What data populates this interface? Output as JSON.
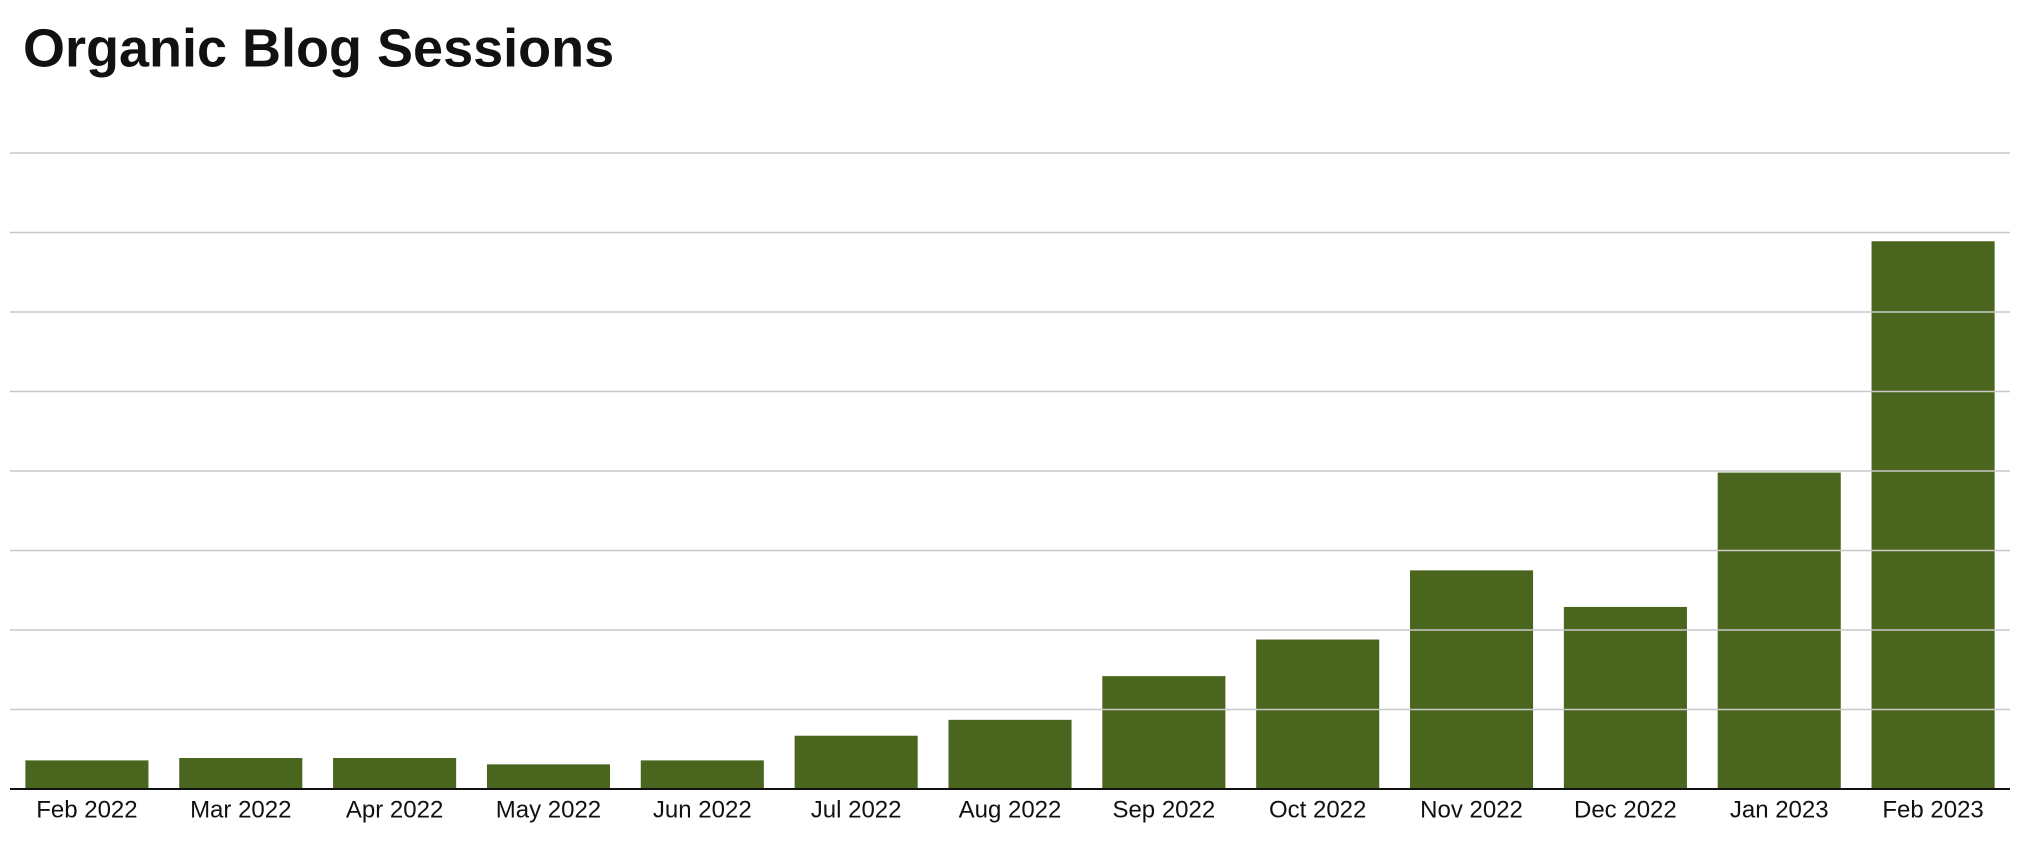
{
  "chart_data": {
    "type": "bar",
    "title": "Organic Blog Sessions",
    "categories": [
      "Feb 2022",
      "Mar 2022",
      "Apr 2022",
      "May 2022",
      "Jun 2022",
      "Jul 2022",
      "Aug 2022",
      "Sep 2022",
      "Oct 2022",
      "Nov 2022",
      "Dec 2022",
      "Jan 2023",
      "Feb 2023"
    ],
    "values": [
      0.36,
      0.39,
      0.39,
      0.31,
      0.36,
      0.67,
      0.87,
      1.42,
      1.88,
      2.75,
      2.29,
      3.98,
      6.89
    ],
    "color": "#4a651e",
    "ylim": [
      0,
      8
    ],
    "yticks": [
      0,
      1,
      2,
      3,
      4,
      5,
      6,
      7,
      8
    ],
    "grid": true
  }
}
